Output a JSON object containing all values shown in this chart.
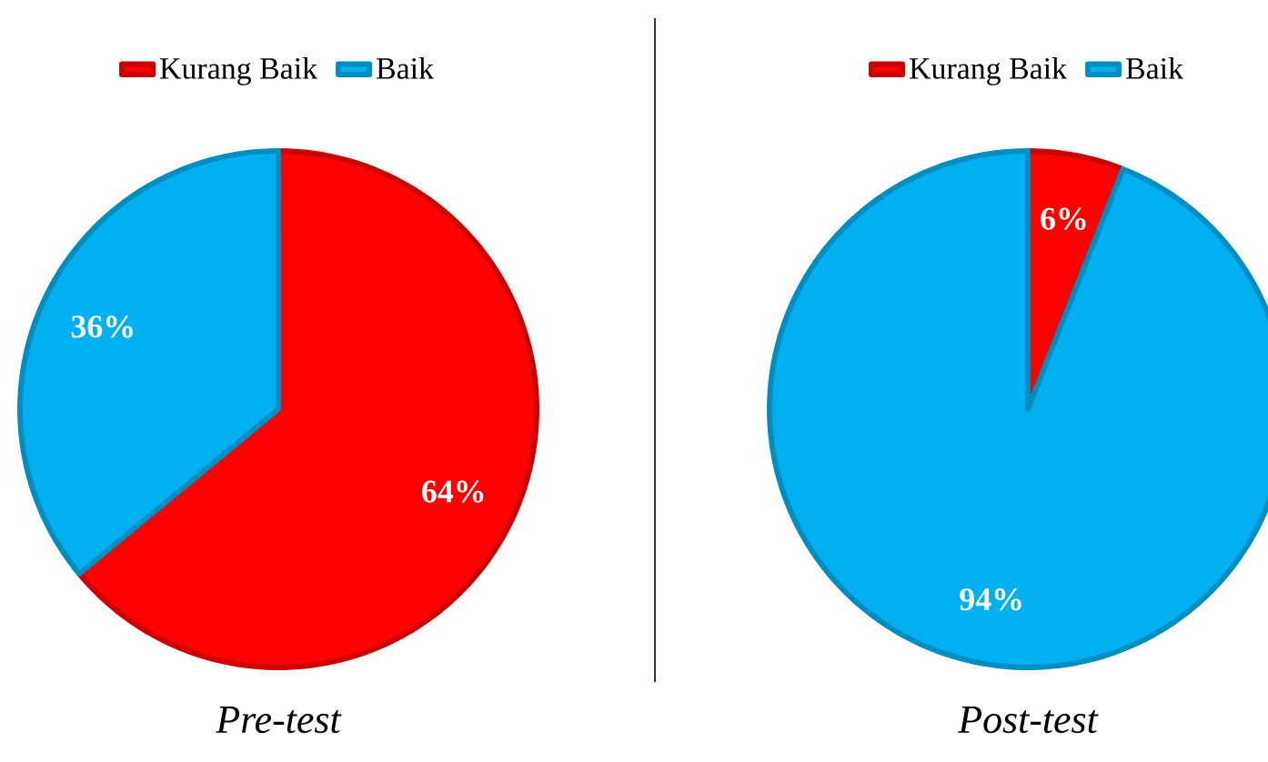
{
  "chart_data": [
    {
      "type": "pie",
      "title": "Pre-test",
      "categories": [
        "Kurang Baik",
        "Baik"
      ],
      "values": [
        64,
        36
      ],
      "colors": [
        "#ff0000",
        "#00b0f0"
      ],
      "value_labels": [
        "64%",
        "36%"
      ],
      "legend": "top"
    },
    {
      "type": "pie",
      "title": "Post-test",
      "categories": [
        "Kurang Baik",
        "Baik"
      ],
      "values": [
        6,
        94
      ],
      "colors": [
        "#ff0000",
        "#00b0f0"
      ],
      "value_labels": [
        "6%",
        "94%"
      ],
      "legend": "top"
    }
  ]
}
